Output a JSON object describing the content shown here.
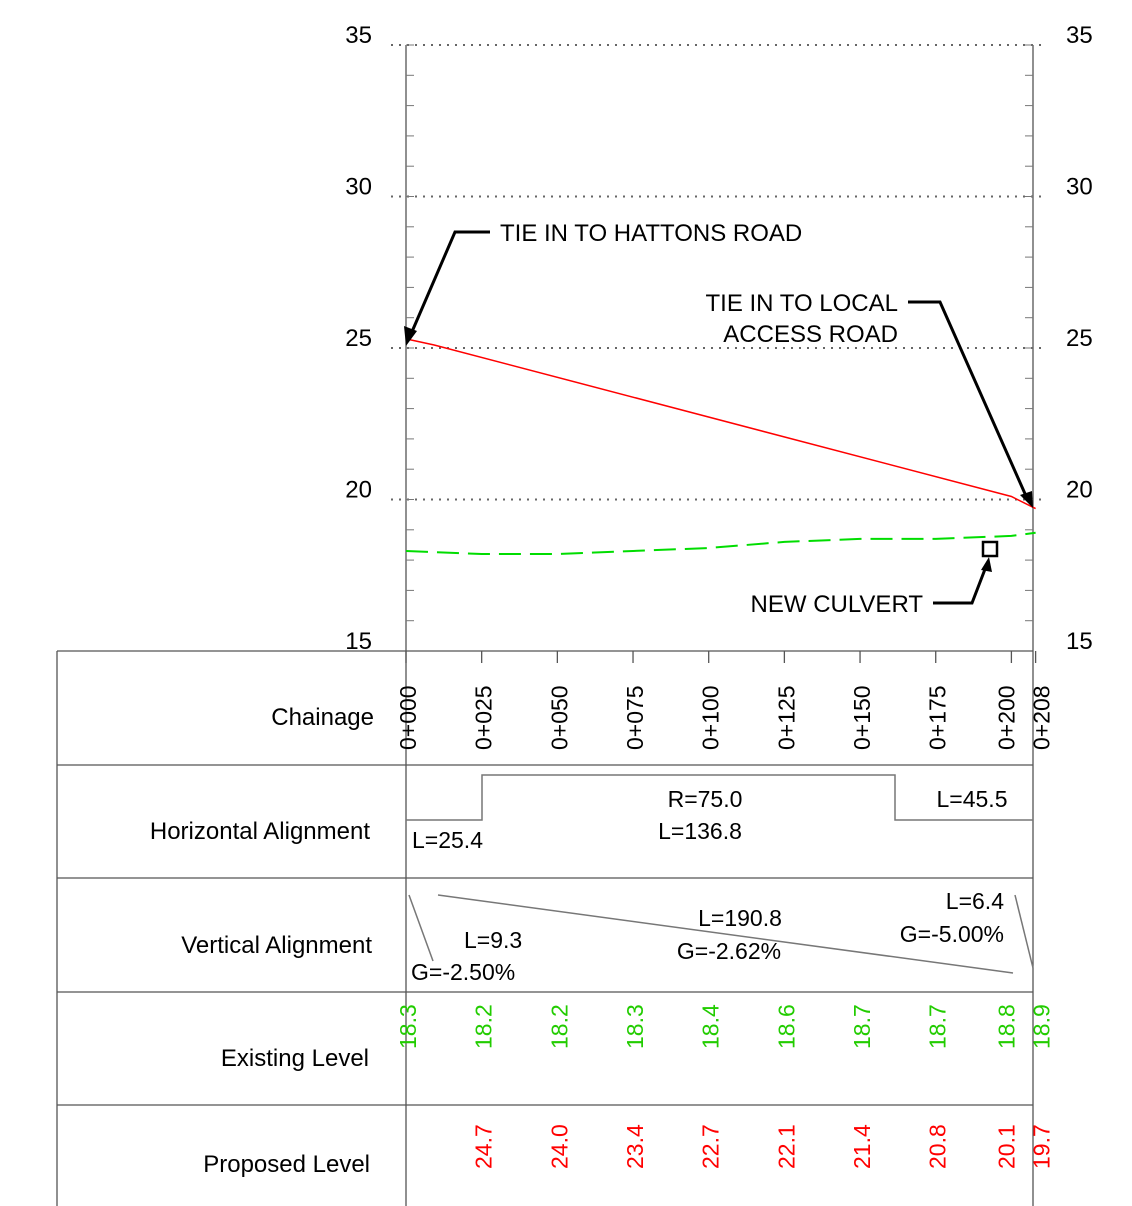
{
  "chart_data": {
    "type": "line",
    "title": "",
    "xlabel": "",
    "ylabel": "",
    "ylim": [
      15,
      35
    ],
    "xlim": [
      0,
      208
    ],
    "y_ticks": [
      "35",
      "30",
      "25",
      "20",
      "15"
    ],
    "grid": "dotted horizontal at 20, 25, 30, 35",
    "series": [
      {
        "key": "proposed",
        "color": "#ff0000",
        "style": "solid",
        "points": [
          [
            0,
            25.3
          ],
          [
            9.3,
            25.1
          ],
          [
            200,
            20.1
          ],
          [
            208,
            19.7
          ]
        ]
      },
      {
        "key": "existing",
        "color": "#00dd00",
        "style": "dashed",
        "points": [
          [
            0,
            18.3
          ],
          [
            25,
            18.2
          ],
          [
            50,
            18.2
          ],
          [
            75,
            18.3
          ],
          [
            100,
            18.4
          ],
          [
            125,
            18.6
          ],
          [
            150,
            18.7
          ],
          [
            175,
            18.7
          ],
          [
            200,
            18.8
          ],
          [
            208,
            18.9
          ]
        ]
      }
    ],
    "annotations": [
      {
        "id": "hattons",
        "lines": [
          "TIE IN TO HATTONS ROAD"
        ]
      },
      {
        "id": "local",
        "lines": [
          "TIE IN TO LOCAL",
          "ACCESS ROAD"
        ]
      },
      {
        "id": "culvert",
        "lines": [
          "NEW CULVERT"
        ]
      }
    ]
  },
  "band_table": {
    "row_labels": [
      "Chainage",
      "Horizontal Alignment",
      "Vertical Alignment",
      "Existing Level",
      "Proposed Level"
    ],
    "chainages": [
      "0+000",
      "0+025",
      "0+050",
      "0+075",
      "0+100",
      "0+125",
      "0+150",
      "0+175",
      "0+200",
      "0+208"
    ],
    "chainage_values": [
      0,
      25,
      50,
      75,
      100,
      125,
      150,
      175,
      200,
      208
    ],
    "horizontal": {
      "straight_1": "L=25.4",
      "curve_radius": "R=75.0",
      "curve_length": "L=136.8",
      "straight_2": "L=45.5"
    },
    "vertical": {
      "grade_1_length": "L=9.3",
      "grade_1": "G=-2.50%",
      "grade_2_length": "L=190.8",
      "grade_2": "G=-2.62%",
      "grade_3_length": "L=6.4",
      "grade_3": "G=-5.00%"
    },
    "existing_levels": [
      "18.3",
      "18.2",
      "18.2",
      "18.3",
      "18.4",
      "18.6",
      "18.7",
      "18.7",
      "18.8",
      "18.9"
    ],
    "proposed_levels": [
      "",
      "24.7",
      "24.0",
      "23.4",
      "22.7",
      "22.1",
      "21.4",
      "20.8",
      "20.1",
      "19.7"
    ],
    "existing_color": "#22cc00",
    "proposed_color": "#ff0000"
  }
}
